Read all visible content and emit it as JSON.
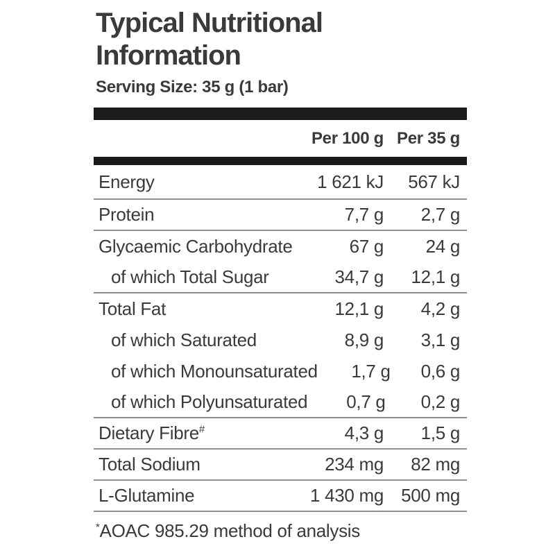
{
  "title": "Typical Nutritional Information",
  "serving_size": "Serving Size: 35 g (1 bar)",
  "table": {
    "columns": [
      "Per 100 g",
      "Per 35 g"
    ],
    "rows": [
      {
        "label": "Energy",
        "sup": "",
        "per_100g": "1 621 kJ",
        "per_35g": "567 kJ",
        "indent": false,
        "divider": true
      },
      {
        "label": "Protein",
        "sup": "",
        "per_100g": "7,7 g",
        "per_35g": "2,7 g",
        "indent": false,
        "divider": true
      },
      {
        "label": "Glycaemic Carbohydrate",
        "sup": "",
        "per_100g": "67 g",
        "per_35g": "24 g",
        "indent": false,
        "divider": false
      },
      {
        "label": "of which Total Sugar",
        "sup": "",
        "per_100g": "34,7 g",
        "per_35g": "12,1 g",
        "indent": true,
        "divider": true
      },
      {
        "label": "Total Fat",
        "sup": "",
        "per_100g": "12,1 g",
        "per_35g": "4,2 g",
        "indent": false,
        "divider": false
      },
      {
        "label": "of which Saturated",
        "sup": "",
        "per_100g": "8,9 g",
        "per_35g": "3,1 g",
        "indent": true,
        "divider": false
      },
      {
        "label": "of which Monounsaturated",
        "sup": "",
        "per_100g": "1,7 g",
        "per_35g": "0,6 g",
        "indent": true,
        "divider": false
      },
      {
        "label": "of which Polyunsaturated",
        "sup": "",
        "per_100g": "0,7 g",
        "per_35g": "0,2 g",
        "indent": true,
        "divider": true
      },
      {
        "label": "Dietary Fibre",
        "sup": "#",
        "per_100g": "4,3 g",
        "per_35g": "1,5 g",
        "indent": false,
        "divider": true
      },
      {
        "label": "Total Sodium",
        "sup": "",
        "per_100g": "234 mg",
        "per_35g": "82 mg",
        "indent": false,
        "divider": true
      },
      {
        "label": "L-Glutamine",
        "sup": "",
        "per_100g": "1 430 mg",
        "per_35g": "500 mg",
        "indent": false,
        "divider": true
      }
    ]
  },
  "footnote": {
    "marker": "*",
    "text": "AOAC 985.29 method of analysis"
  },
  "colors": {
    "text": "#3a3a3c",
    "bar": "#1b1b1d",
    "divider": "#8f8f8f",
    "background": "#ffffff"
  }
}
